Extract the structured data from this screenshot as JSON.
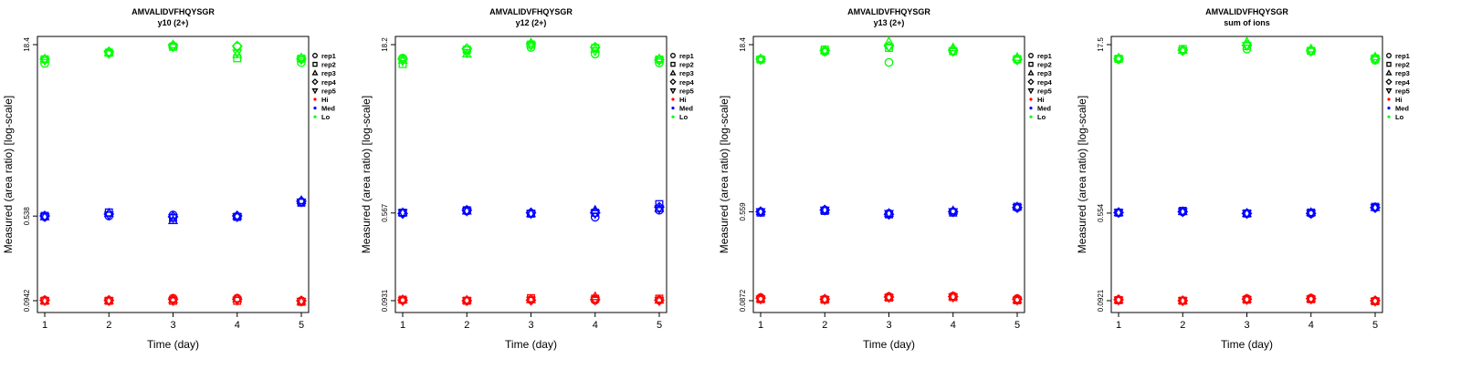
{
  "panels": [
    {
      "title": "AMVALIDVFHQYSGR",
      "subtitle": "y10 (2+)",
      "chart_data": {
        "type": "scatter",
        "xlabel": "Time (day)",
        "ylabel": "Measured (area ratio) [log-scale]",
        "x": [
          1,
          2,
          3,
          4,
          5
        ],
        "y_scale": "log",
        "y_ticks": [
          0.0942,
          0.538,
          18.4
        ],
        "y_tick_labels": [
          "0.0942",
          "0.538",
          "18.4"
        ],
        "legend_position": "right",
        "series": [
          {
            "group": "Hi",
            "replicate": "rep1",
            "values": [
              0.095,
              0.094,
              0.099,
              0.099,
              0.094
            ]
          },
          {
            "group": "Hi",
            "replicate": "rep2",
            "values": [
              0.094,
              0.094,
              0.094,
              0.094,
              0.092
            ]
          },
          {
            "group": "Hi",
            "replicate": "rep3",
            "values": [
              0.094,
              0.094,
              0.096,
              0.098,
              0.093
            ]
          },
          {
            "group": "Hi",
            "replicate": "rep4",
            "values": [
              0.095,
              0.095,
              0.097,
              0.097,
              0.094
            ]
          },
          {
            "group": "Hi",
            "replicate": "rep5",
            "values": [
              0.094,
              0.094,
              0.094,
              0.095,
              0.093
            ]
          },
          {
            "group": "Med",
            "replicate": "rep1",
            "values": [
              0.53,
              0.54,
              0.55,
              0.53,
              0.72
            ]
          },
          {
            "group": "Med",
            "replicate": "rep2",
            "values": [
              0.54,
              0.58,
              0.52,
              0.53,
              0.71
            ]
          },
          {
            "group": "Med",
            "replicate": "rep3",
            "values": [
              0.53,
              0.57,
              0.49,
              0.54,
              0.74
            ]
          },
          {
            "group": "Med",
            "replicate": "rep4",
            "values": [
              0.54,
              0.56,
              0.53,
              0.54,
              0.73
            ]
          },
          {
            "group": "Med",
            "replicate": "rep5",
            "values": [
              0.53,
              0.55,
              0.52,
              0.53,
              0.72
            ]
          },
          {
            "group": "Lo",
            "replicate": "rep1",
            "values": [
              12.5,
              15.5,
              17.9,
              17.6,
              12.7
            ]
          },
          {
            "group": "Lo",
            "replicate": "rep2",
            "values": [
              13.6,
              15.6,
              17.6,
              13.9,
              13.8
            ]
          },
          {
            "group": "Lo",
            "replicate": "rep3",
            "values": [
              13.7,
              15.6,
              18.3,
              15.0,
              14.0
            ]
          },
          {
            "group": "Lo",
            "replicate": "rep4",
            "values": [
              13.6,
              15.9,
              18.1,
              17.9,
              13.7
            ]
          },
          {
            "group": "Lo",
            "replicate": "rep5",
            "values": [
              13.3,
              15.3,
              17.5,
              15.5,
              13.5
            ]
          }
        ]
      }
    },
    {
      "title": "AMVALIDVFHQYSGR",
      "subtitle": "y12 (2+)",
      "chart_data": {
        "type": "scatter",
        "xlabel": "Time (day)",
        "ylabel": "Measured (area ratio) [log-scale]",
        "x": [
          1,
          2,
          3,
          4,
          5
        ],
        "y_scale": "log",
        "y_ticks": [
          0.0931,
          0.567,
          18.2
        ],
        "y_tick_labels": [
          "0.0931",
          "0.567",
          "18.2"
        ],
        "legend_position": "right",
        "series": [
          {
            "group": "Hi",
            "replicate": "rep1",
            "values": [
              0.094,
              0.093,
              0.095,
              0.094,
              0.094
            ]
          },
          {
            "group": "Hi",
            "replicate": "rep2",
            "values": [
              0.095,
              0.093,
              0.098,
              0.097,
              0.097
            ]
          },
          {
            "group": "Hi",
            "replicate": "rep3",
            "values": [
              0.095,
              0.094,
              0.095,
              0.101,
              0.094
            ]
          },
          {
            "group": "Hi",
            "replicate": "rep4",
            "values": [
              0.094,
              0.093,
              0.094,
              0.095,
              0.094
            ]
          },
          {
            "group": "Hi",
            "replicate": "rep5",
            "values": [
              0.093,
              0.093,
              0.094,
              0.094,
              0.093
            ]
          },
          {
            "group": "Med",
            "replicate": "rep1",
            "values": [
              0.57,
              0.59,
              0.56,
              0.52,
              0.6
            ]
          },
          {
            "group": "Med",
            "replicate": "rep2",
            "values": [
              0.57,
              0.6,
              0.56,
              0.57,
              0.68
            ]
          },
          {
            "group": "Med",
            "replicate": "rep3",
            "values": [
              0.57,
              0.59,
              0.56,
              0.6,
              0.62
            ]
          },
          {
            "group": "Med",
            "replicate": "rep4",
            "values": [
              0.56,
              0.6,
              0.57,
              0.57,
              0.64
            ]
          },
          {
            "group": "Med",
            "replicate": "rep5",
            "values": [
              0.57,
              0.59,
              0.56,
              0.56,
              0.62
            ]
          },
          {
            "group": "Lo",
            "replicate": "rep1",
            "values": [
              13.8,
              16.2,
              17.2,
              15.0,
              12.5
            ]
          },
          {
            "group": "Lo",
            "replicate": "rep2",
            "values": [
              12.2,
              16.4,
              18.2,
              17.0,
              13.4
            ]
          },
          {
            "group": "Lo",
            "replicate": "rep3",
            "values": [
              13.2,
              15.0,
              18.8,
              16.6,
              13.6
            ]
          },
          {
            "group": "Lo",
            "replicate": "rep4",
            "values": [
              13.5,
              16.8,
              18.5,
              17.3,
              13.3
            ]
          },
          {
            "group": "Lo",
            "replicate": "rep5",
            "values": [
              13.0,
              15.5,
              18.0,
              16.0,
              13.1
            ]
          }
        ]
      }
    },
    {
      "title": "AMVALIDVFHQYSGR",
      "subtitle": "y13 (2+)",
      "chart_data": {
        "type": "scatter",
        "xlabel": "Time (day)",
        "ylabel": "Measured (area ratio) [log-scale]",
        "x": [
          1,
          2,
          3,
          4,
          5
        ],
        "y_scale": "log",
        "y_ticks": [
          0.0872,
          0.559,
          18.4
        ],
        "y_tick_labels": [
          "0.0872",
          "0.559",
          "18.4"
        ],
        "legend_position": "right",
        "series": [
          {
            "group": "Hi",
            "replicate": "rep1",
            "values": [
              0.093,
              0.09,
              0.095,
              0.096,
              0.091
            ]
          },
          {
            "group": "Hi",
            "replicate": "rep2",
            "values": [
              0.09,
              0.089,
              0.093,
              0.094,
              0.088
            ]
          },
          {
            "group": "Hi",
            "replicate": "rep3",
            "values": [
              0.091,
              0.09,
              0.094,
              0.095,
              0.089
            ]
          },
          {
            "group": "Hi",
            "replicate": "rep4",
            "values": [
              0.092,
              0.09,
              0.094,
              0.095,
              0.09
            ]
          },
          {
            "group": "Hi",
            "replicate": "rep5",
            "values": [
              0.09,
              0.089,
              0.093,
              0.094,
              0.088
            ]
          },
          {
            "group": "Med",
            "replicate": "rep1",
            "values": [
              0.56,
              0.58,
              0.54,
              0.56,
              0.61
            ]
          },
          {
            "group": "Med",
            "replicate": "rep2",
            "values": [
              0.55,
              0.57,
              0.53,
              0.55,
              0.62
            ]
          },
          {
            "group": "Med",
            "replicate": "rep3",
            "values": [
              0.56,
              0.58,
              0.54,
              0.57,
              0.62
            ]
          },
          {
            "group": "Med",
            "replicate": "rep4",
            "values": [
              0.56,
              0.58,
              0.53,
              0.56,
              0.61
            ]
          },
          {
            "group": "Med",
            "replicate": "rep5",
            "values": [
              0.56,
              0.58,
              0.54,
              0.56,
              0.61
            ]
          },
          {
            "group": "Lo",
            "replicate": "rep1",
            "values": [
              13.5,
              15.9,
              12.7,
              16.0,
              13.4
            ]
          },
          {
            "group": "Lo",
            "replicate": "rep2",
            "values": [
              13.5,
              16.6,
              17.2,
              16.1,
              13.6
            ]
          },
          {
            "group": "Lo",
            "replicate": "rep3",
            "values": [
              13.7,
              16.2,
              19.5,
              17.2,
              14.1
            ]
          },
          {
            "group": "Lo",
            "replicate": "rep4",
            "values": [
              13.6,
              16.3,
              17.8,
              16.4,
              13.5
            ]
          },
          {
            "group": "Lo",
            "replicate": "rep5",
            "values": [
              13.4,
              16.0,
              17.5,
              16.0,
              13.3
            ]
          }
        ]
      }
    },
    {
      "title": "AMVALIDVFHQYSGR",
      "subtitle": "sum of ions",
      "chart_data": {
        "type": "scatter",
        "xlabel": "Time (day)",
        "ylabel": "Measured (area ratio) [log-scale]",
        "x": [
          1,
          2,
          3,
          4,
          5
        ],
        "y_scale": "log",
        "y_ticks": [
          0.0921,
          0.554,
          17.5
        ],
        "y_tick_labels": [
          "0.0921",
          "0.554",
          "17.5"
        ],
        "legend_position": "right",
        "series": [
          {
            "group": "Hi",
            "replicate": "rep1",
            "values": [
              0.094,
              0.092,
              0.096,
              0.097,
              0.092
            ]
          },
          {
            "group": "Hi",
            "replicate": "rep2",
            "values": [
              0.093,
              0.092,
              0.094,
              0.095,
              0.091
            ]
          },
          {
            "group": "Hi",
            "replicate": "rep3",
            "values": [
              0.094,
              0.092,
              0.095,
              0.096,
              0.092
            ]
          },
          {
            "group": "Hi",
            "replicate": "rep4",
            "values": [
              0.094,
              0.092,
              0.095,
              0.096,
              0.092
            ]
          },
          {
            "group": "Hi",
            "replicate": "rep5",
            "values": [
              0.093,
              0.092,
              0.094,
              0.095,
              0.091
            ]
          },
          {
            "group": "Med",
            "replicate": "rep1",
            "values": [
              0.56,
              0.57,
              0.55,
              0.55,
              0.62
            ]
          },
          {
            "group": "Med",
            "replicate": "rep2",
            "values": [
              0.56,
              0.58,
              0.55,
              0.56,
              0.63
            ]
          },
          {
            "group": "Med",
            "replicate": "rep3",
            "values": [
              0.56,
              0.57,
              0.55,
              0.56,
              0.62
            ]
          },
          {
            "group": "Med",
            "replicate": "rep4",
            "values": [
              0.56,
              0.57,
              0.55,
              0.55,
              0.62
            ]
          },
          {
            "group": "Med",
            "replicate": "rep5",
            "values": [
              0.56,
              0.57,
              0.55,
              0.55,
              0.62
            ]
          },
          {
            "group": "Lo",
            "replicate": "rep1",
            "values": [
              13.0,
              15.5,
              16.0,
              15.3,
              12.7
            ]
          },
          {
            "group": "Lo",
            "replicate": "rep2",
            "values": [
              13.1,
              16.0,
              17.0,
              15.4,
              13.2
            ]
          },
          {
            "group": "Lo",
            "replicate": "rep3",
            "values": [
              13.3,
              15.6,
              18.4,
              16.0,
              13.6
            ]
          },
          {
            "group": "Lo",
            "replicate": "rep4",
            "values": [
              13.1,
              15.7,
              17.3,
              15.6,
              13.1
            ]
          },
          {
            "group": "Lo",
            "replicate": "rep5",
            "values": [
              13.0,
              15.4,
              17.2,
              15.3,
              12.9
            ]
          }
        ]
      }
    }
  ],
  "legend": {
    "replicates": [
      {
        "label": "rep1",
        "marker": "circle"
      },
      {
        "label": "rep2",
        "marker": "square"
      },
      {
        "label": "rep3",
        "marker": "triangle-up"
      },
      {
        "label": "rep4",
        "marker": "diamond"
      },
      {
        "label": "rep5",
        "marker": "triangle-down"
      }
    ],
    "groups": [
      {
        "label": "Hi",
        "color": "#ff0000"
      },
      {
        "label": "Med",
        "color": "#0000ff"
      },
      {
        "label": "Lo",
        "color": "#00ff00"
      }
    ]
  }
}
